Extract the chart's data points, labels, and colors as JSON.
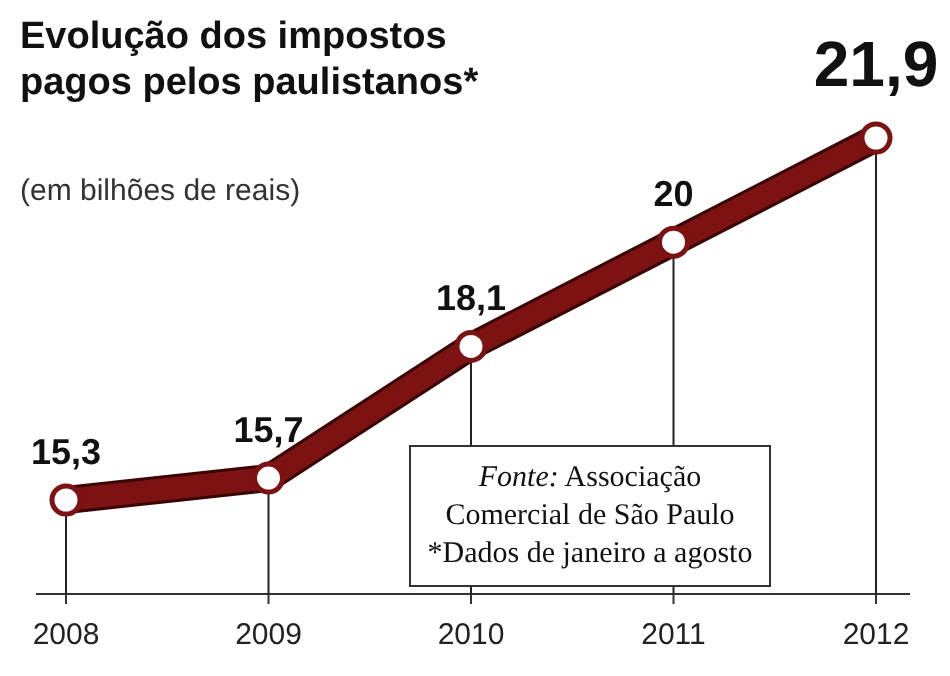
{
  "chart_data": {
    "type": "line",
    "title": "Evolução dos impostos pagos pelos paulistanos*",
    "subtitle": "(em bilhões de reais)",
    "categories": [
      "2008",
      "2009",
      "2010",
      "2011",
      "2012"
    ],
    "series": [
      {
        "color": "#7d1212",
        "values": [
          15.3,
          15.7,
          18.1,
          20,
          21.9
        ],
        "value_labels": [
          "15,3",
          "15,7",
          "18,1",
          "20",
          "21,9"
        ]
      }
    ],
    "tick_labels": "x",
    "marker": "circle",
    "line_style": "solid",
    "annotations": [
      "Fonte: Associação Comercial de São Paulo",
      "*Dados de janeiro a agosto"
    ]
  }
}
